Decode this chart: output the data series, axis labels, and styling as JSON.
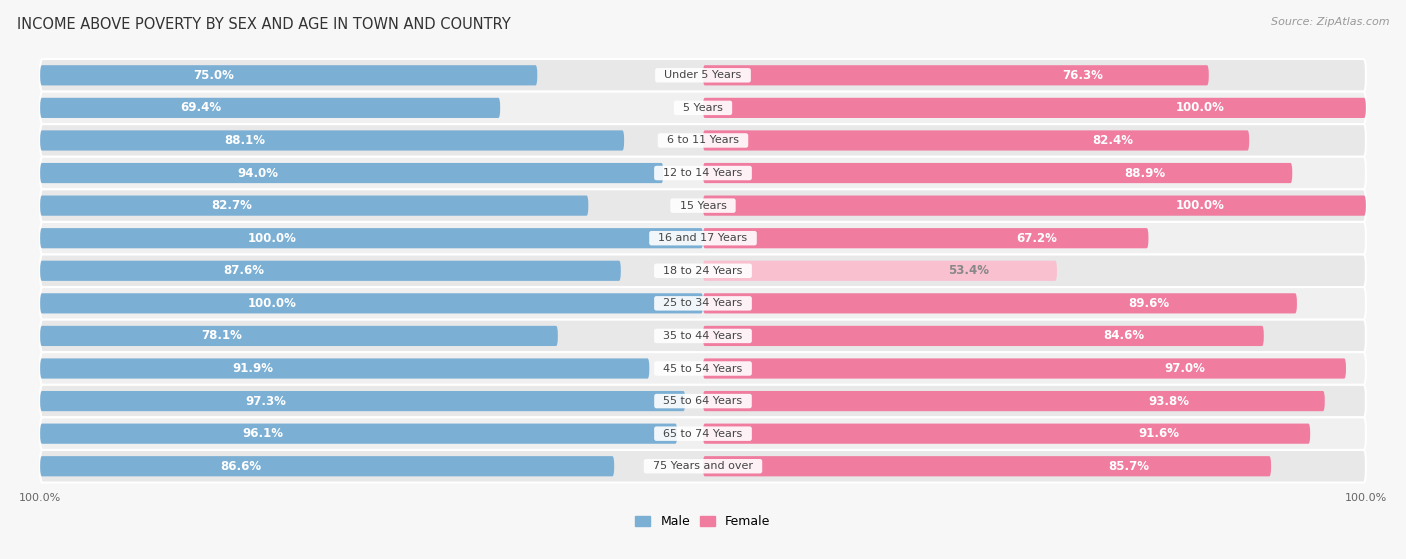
{
  "title": "INCOME ABOVE POVERTY BY SEX AND AGE IN TOWN AND COUNTRY",
  "source": "Source: ZipAtlas.com",
  "categories": [
    "Under 5 Years",
    "5 Years",
    "6 to 11 Years",
    "12 to 14 Years",
    "15 Years",
    "16 and 17 Years",
    "18 to 24 Years",
    "25 to 34 Years",
    "35 to 44 Years",
    "45 to 54 Years",
    "55 to 64 Years",
    "65 to 74 Years",
    "75 Years and over"
  ],
  "male_values": [
    75.0,
    69.4,
    88.1,
    94.0,
    82.7,
    100.0,
    87.6,
    100.0,
    78.1,
    91.9,
    97.3,
    96.1,
    86.6
  ],
  "female_values": [
    76.3,
    100.0,
    82.4,
    88.9,
    100.0,
    67.2,
    53.4,
    89.6,
    84.6,
    97.0,
    93.8,
    91.6,
    85.7
  ],
  "male_color": "#7bafd4",
  "female_color": "#f07ca0",
  "female_color_light": "#f9c0d0",
  "male_label_color": "#ffffff",
  "female_label_color": "#ffffff",
  "female_label_color_dark": "#888888",
  "row_bg_color": "#e8e8e8",
  "bg_color": "#f7f7f7",
  "title_fontsize": 10.5,
  "source_fontsize": 8,
  "label_fontsize": 8.5,
  "category_fontsize": 8,
  "legend_fontsize": 9,
  "axis_label_fontsize": 8
}
